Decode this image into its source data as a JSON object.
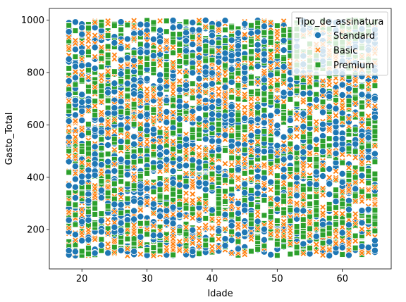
{
  "chart_data": {
    "type": "scatter",
    "xlabel": "Idade",
    "ylabel": "Gasto_Total",
    "xlim": [
      15,
      67.5
    ],
    "ylim": [
      50,
      1045
    ],
    "xticks": [
      20,
      30,
      40,
      50,
      60
    ],
    "yticks": [
      200,
      400,
      600,
      800,
      1000
    ],
    "grid": false,
    "legend": {
      "title": "Tipo_de_assinatura",
      "placement": "top-right"
    },
    "age_range": [
      18,
      65
    ],
    "spend_range": [
      100,
      1000
    ],
    "series": [
      {
        "name": "Standard",
        "marker": "circle",
        "color": "#1f77b4"
      },
      {
        "name": "Basic",
        "marker": "x",
        "color": "#ff7f0e"
      },
      {
        "name": "Premium",
        "marker": "square",
        "color": "#2ca02c"
      }
    ],
    "points": [
      {
        "x": 18,
        "y": 120,
        "series": "Standard"
      },
      {
        "x": 18,
        "y": 980,
        "series": "Premium"
      },
      {
        "x": 25,
        "y": 450,
        "series": "Basic"
      },
      {
        "x": 33,
        "y": 610,
        "series": "Standard"
      },
      {
        "x": 41,
        "y": 300,
        "series": "Premium"
      },
      {
        "x": 49,
        "y": 870,
        "series": "Basic"
      },
      {
        "x": 57,
        "y": 220,
        "series": "Standard"
      },
      {
        "x": 65,
        "y": 750,
        "series": "Premium"
      }
    ]
  }
}
